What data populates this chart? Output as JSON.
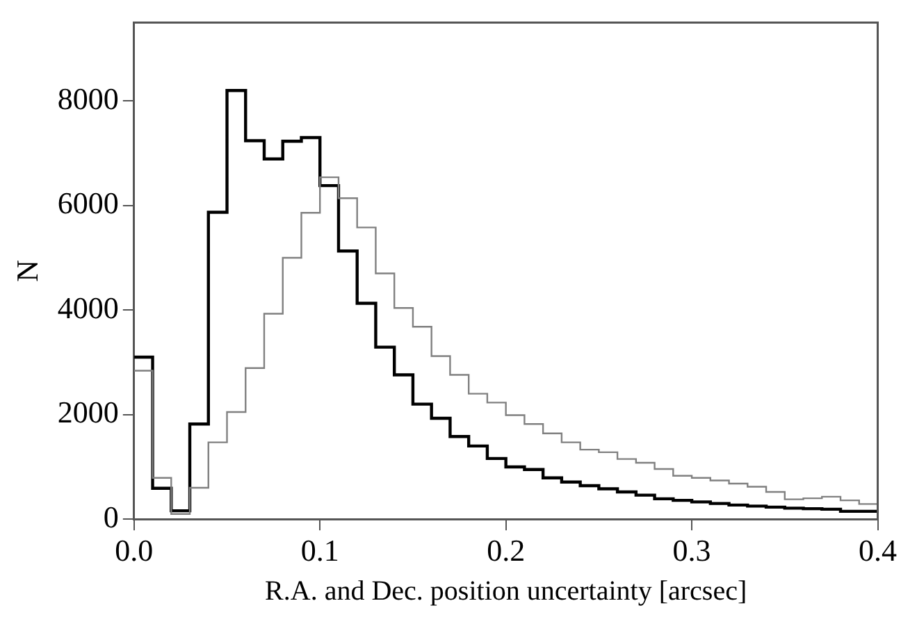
{
  "chart_data": {
    "type": "histogram",
    "xlabel": "R.A. and Dec. position uncertainty [arcsec]",
    "ylabel": "N",
    "bins": [
      0,
      0.01,
      0.02,
      0.03,
      0.04,
      0.05,
      0.06,
      0.07,
      0.08,
      0.09,
      0.1,
      0.11,
      0.12,
      0.13,
      0.14,
      0.15,
      0.16,
      0.17,
      0.18,
      0.19,
      0.2,
      0.21,
      0.22,
      0.23,
      0.24,
      0.25,
      0.26,
      0.27,
      0.28,
      0.29,
      0.3,
      0.31,
      0.32,
      0.33,
      0.34,
      0.35,
      0.36,
      0.37,
      0.38,
      0.39,
      0.4
    ],
    "series": [
      {
        "color": "#808080",
        "values": [
          2840,
          790,
          100,
          600,
          1470,
          2050,
          2890,
          3930,
          5000,
          5860,
          6540,
          6140,
          5580,
          4700,
          4040,
          3680,
          3120,
          2760,
          2400,
          2230,
          1990,
          1820,
          1640,
          1470,
          1330,
          1280,
          1150,
          1080,
          960,
          830,
          790,
          740,
          680,
          620,
          520,
          380,
          400,
          430,
          360,
          290
        ]
      },
      {
        "color": "#000000",
        "values": [
          3100,
          590,
          160,
          1820,
          5870,
          8200,
          7240,
          6890,
          7230,
          7300,
          6380,
          5130,
          4130,
          3290,
          2760,
          2200,
          1930,
          1580,
          1400,
          1160,
          1000,
          950,
          790,
          710,
          640,
          580,
          520,
          460,
          390,
          360,
          330,
          300,
          270,
          250,
          230,
          210,
          200,
          190,
          150,
          150
        ]
      }
    ],
    "xlim": [
      0,
      0.4
    ],
    "xticks": [
      {
        "value": 0,
        "label": "0.0"
      },
      0.1,
      0.2,
      0.3,
      0.4
    ],
    "ylim": [
      0,
      9500
    ],
    "yticks": [
      0,
      2000,
      4000,
      6000,
      8000
    ],
    "grid": false,
    "legend": false
  }
}
